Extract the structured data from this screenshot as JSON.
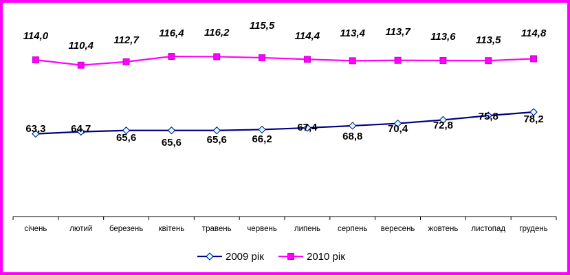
{
  "chart_data": {
    "type": "line",
    "categories": [
      "січень",
      "лютий",
      "березень",
      "квітень",
      "травень",
      "червень",
      "липень",
      "серпень",
      "вересень",
      "жовтень",
      "листопад",
      "грудень"
    ],
    "series": [
      {
        "name": "2009 рік",
        "values": [
          63.3,
          64.7,
          65.6,
          65.6,
          65.6,
          66.2,
          67.4,
          68.8,
          70.4,
          72.8,
          75.8,
          78.2
        ],
        "labels": [
          "63,3",
          "64,7",
          "65,6",
          "65,6",
          "65,6",
          "66,2",
          "67,4",
          "68,8",
          "70,4",
          "72,8",
          "75,8",
          "78,2"
        ],
        "color": "#000080",
        "marker": "diamond",
        "marker_fill": "#ccffff"
      },
      {
        "name": "2010 рік",
        "values": [
          114.0,
          110.4,
          112.7,
          116.4,
          116.2,
          115.5,
          114.4,
          113.4,
          113.7,
          113.6,
          113.5,
          114.8
        ],
        "labels": [
          "114,0",
          "110,4",
          "112,7",
          "116,4",
          "116,2",
          "115,5",
          "114,4",
          "113,4",
          "113,7",
          "113,6",
          "113,5",
          "114,8"
        ],
        "color": "#ff00ff",
        "marker": "square",
        "marker_fill": "#ff00ff"
      }
    ],
    "title": "",
    "xlabel": "",
    "ylabel": "",
    "grid": false,
    "legend": "bottom-center",
    "frame_color": "#ff00ff"
  }
}
